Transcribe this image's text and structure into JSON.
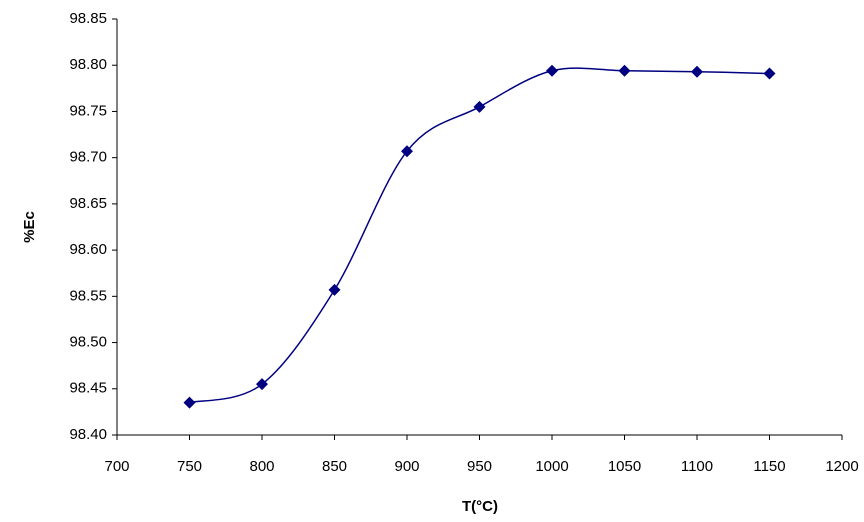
{
  "chart_data": {
    "type": "scatter-smooth",
    "x_label": "T(°C)",
    "y_label": "%Ec",
    "x": [
      750,
      800,
      850,
      900,
      950,
      1000,
      1050,
      1100,
      1150
    ],
    "series": [
      {
        "name": "%Ec",
        "color": "#000080",
        "values": [
          98.435,
          98.455,
          98.557,
          98.707,
          98.755,
          98.794,
          98.794,
          98.793,
          98.791
        ]
      }
    ],
    "xlim": [
      700,
      1200
    ],
    "xticks": [
      700,
      750,
      800,
      850,
      900,
      950,
      1000,
      1050,
      1100,
      1150,
      1200
    ],
    "ylim": [
      98.4,
      98.85
    ],
    "yticks": [
      {
        "value": 98.4,
        "label": "98.40"
      },
      98.45,
      {
        "value": 98.5,
        "label": "98.50"
      },
      98.55,
      {
        "value": 98.6,
        "label": "98.60"
      },
      98.65,
      {
        "value": 98.7,
        "label": "98.70"
      },
      98.75,
      {
        "value": 98.8,
        "label": "98.80"
      },
      98.85
    ],
    "grid": false
  }
}
